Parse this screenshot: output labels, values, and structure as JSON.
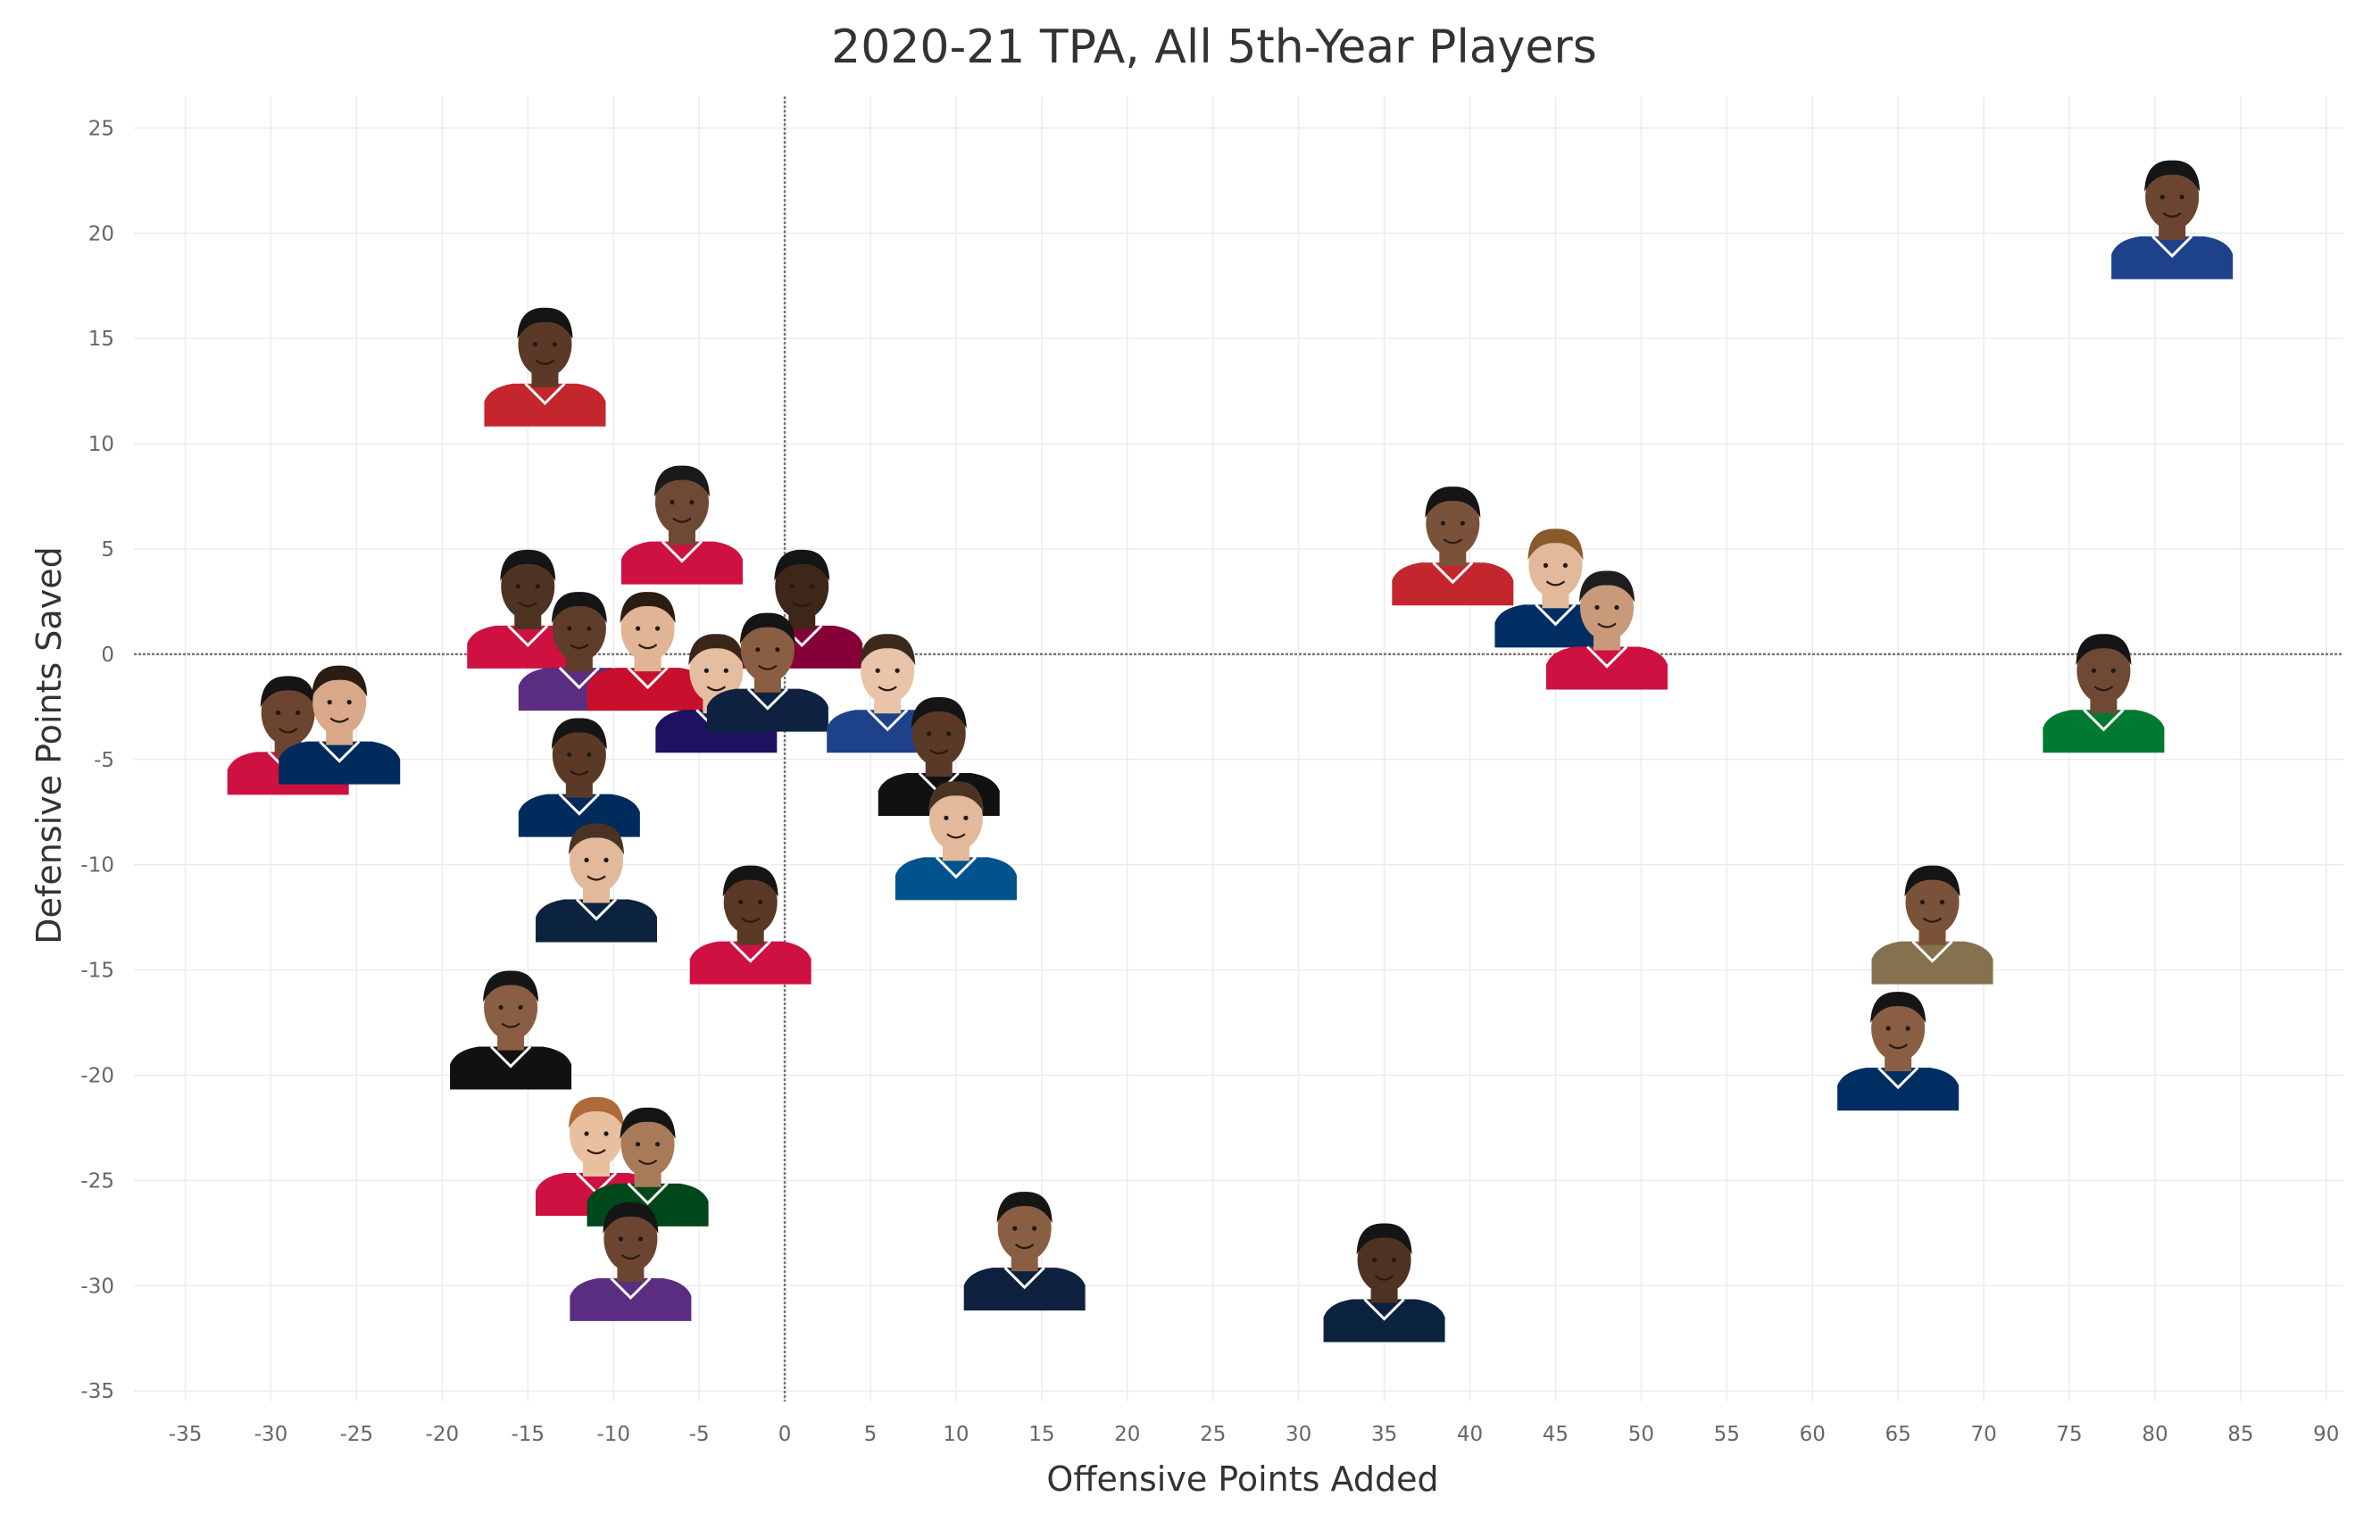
{
  "chart_data": {
    "type": "scatter",
    "title": "2020-21 TPA, All 5th-Year Players",
    "xlabel": "Offensive Points Added",
    "ylabel": "Defensive Points Saved",
    "xlim": [
      -38,
      91
    ],
    "ylim": [
      -35.5,
      26.5
    ],
    "x_ticks": [
      -35,
      -30,
      -25,
      -20,
      -15,
      -10,
      -5,
      0,
      5,
      10,
      15,
      20,
      25,
      30,
      35,
      40,
      45,
      50,
      55,
      60,
      65,
      70,
      75,
      80,
      85,
      90
    ],
    "y_ticks": [
      25,
      20,
      15,
      10,
      5,
      0,
      -5,
      -10,
      -15,
      -20,
      -25,
      -30,
      -35
    ],
    "grid": true,
    "markers": "player headshots",
    "points": [
      {
        "x": 81,
        "y": 21,
        "jersey": "#1d428a",
        "skin": "#6b4530",
        "hair": "#151515"
      },
      {
        "x": -14,
        "y": 14,
        "jersey": "#c4262e",
        "skin": "#5a3a27",
        "hair": "#151515"
      },
      {
        "x": -6,
        "y": 6.5,
        "jersey": "#ce1141",
        "skin": "#6e4a34",
        "hair": "#1a1a1a"
      },
      {
        "x": 39,
        "y": 5.5,
        "jersey": "#c4262e",
        "skin": "#7a5239",
        "hair": "#151515"
      },
      {
        "x": 45,
        "y": 3.5,
        "jersey": "#002d62",
        "skin": "#e2b99a",
        "hair": "#8a5a2b"
      },
      {
        "x": 48,
        "y": 1.5,
        "jersey": "#ce1141",
        "skin": "#c99a7a",
        "hair": "#1e1e1e"
      },
      {
        "x": 77,
        "y": -1.5,
        "jersey": "#007a33",
        "skin": "#6e4a34",
        "hair": "#151515"
      },
      {
        "x": -15,
        "y": 2.5,
        "jersey": "#ce1141",
        "skin": "#4e3222",
        "hair": "#151515"
      },
      {
        "x": -12,
        "y": 0.5,
        "jersey": "#5a2d81",
        "skin": "#5e3d2a",
        "hair": "#151515"
      },
      {
        "x": -8,
        "y": 0.5,
        "jersey": "#c8102e",
        "skin": "#e0b494",
        "hair": "#2a1d12"
      },
      {
        "x": 1,
        "y": 2.5,
        "jersey": "#860038",
        "skin": "#3d271b",
        "hair": "#151515"
      },
      {
        "x": -4,
        "y": -1.5,
        "jersey": "#1d1160",
        "skin": "#e5bd9f",
        "hair": "#3a2618"
      },
      {
        "x": -1,
        "y": -0.5,
        "jersey": "#0e2240",
        "skin": "#8a5e43",
        "hair": "#151515"
      },
      {
        "x": 6,
        "y": -1.5,
        "jersey": "#1d428a",
        "skin": "#e8c4a8",
        "hair": "#3b2a1c"
      },
      {
        "x": -29,
        "y": -3.5,
        "jersey": "#ce1141",
        "skin": "#6b4530",
        "hair": "#151515"
      },
      {
        "x": -26,
        "y": -3.0,
        "jersey": "#002b5c",
        "skin": "#d8a888",
        "hair": "#2a1d12"
      },
      {
        "x": -12,
        "y": -5.5,
        "jersey": "#002b5c",
        "skin": "#5a3a27",
        "hair": "#151515"
      },
      {
        "x": 9,
        "y": -4.5,
        "jersey": "#111111",
        "skin": "#5a3a27",
        "hair": "#151515"
      },
      {
        "x": 10,
        "y": -8.5,
        "jersey": "#00538c",
        "skin": "#e2b99a",
        "hair": "#4a3322"
      },
      {
        "x": -11,
        "y": -10.5,
        "jersey": "#0c2340",
        "skin": "#e2b99a",
        "hair": "#4a3322"
      },
      {
        "x": -2,
        "y": -12.5,
        "jersey": "#ce1141",
        "skin": "#5a3a27",
        "hair": "#151515"
      },
      {
        "x": -16,
        "y": -17.5,
        "jersey": "#111111",
        "skin": "#8a5e43",
        "hair": "#151515"
      },
      {
        "x": 67,
        "y": -12.5,
        "jersey": "#85714d",
        "skin": "#7a5239",
        "hair": "#151515"
      },
      {
        "x": 65,
        "y": -18.5,
        "jersey": "#002d62",
        "skin": "#8a5e43",
        "hair": "#151515"
      },
      {
        "x": -11,
        "y": -23.5,
        "jersey": "#ce1141",
        "skin": "#e8c0a0",
        "hair": "#b06a3a"
      },
      {
        "x": -8,
        "y": -24.0,
        "jersey": "#00471b",
        "skin": "#a97a5a",
        "hair": "#151515"
      },
      {
        "x": -9,
        "y": -28.5,
        "jersey": "#5a2d81",
        "skin": "#6b4530",
        "hair": "#151515"
      },
      {
        "x": 14,
        "y": -28.0,
        "jersey": "#0e2240",
        "skin": "#8a5e43",
        "hair": "#151515"
      },
      {
        "x": 35,
        "y": -29.5,
        "jersey": "#0c2340",
        "skin": "#4e3222",
        "hair": "#151515"
      }
    ]
  }
}
